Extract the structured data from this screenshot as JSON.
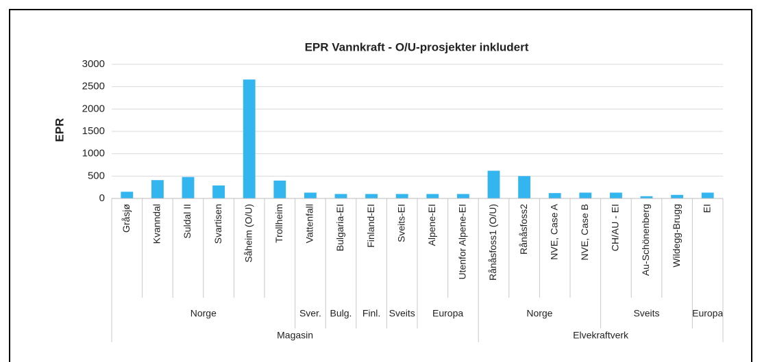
{
  "chart_data": {
    "type": "bar",
    "title": "EPR Vannkraft - O/U-prosjekter inkludert",
    "y_label": "EPR",
    "categories": [
      "Gråsjø",
      "Kvanndal",
      "Suldal II",
      "Svartisen",
      "Såheim (O/U)",
      "Trollheim",
      "Vattenfall",
      "Bulgaria-EI",
      "Finland-EI",
      "Sveits-EI",
      "Alpene-EI",
      "Utenfor Alpene-EI",
      "Rånåsfoss1 (O/U)",
      "Rånåsfoss2",
      "NVE, Case A",
      "NVE, Case B",
      "CH/AU - EI",
      "Au-Schönenberg",
      "Wildegg-Brugg",
      "EI"
    ],
    "values": [
      150,
      410,
      480,
      290,
      2660,
      400,
      130,
      100,
      100,
      100,
      100,
      100,
      620,
      500,
      120,
      130,
      130,
      50,
      80,
      130
    ],
    "color": "#33b5f0",
    "groups": [
      {
        "label": "Norge",
        "span": 6
      },
      {
        "label": "Sver.",
        "span": 1
      },
      {
        "label": "Bulg.",
        "span": 1
      },
      {
        "label": "Finl.",
        "span": 1
      },
      {
        "label": "Sveits",
        "span": 1
      },
      {
        "label": "Europa",
        "span": 2
      },
      {
        "label": "Norge",
        "span": 4
      },
      {
        "label": "Sveits",
        "span": 3
      },
      {
        "label": "Europa",
        "span": 1
      }
    ],
    "supergroups": [
      {
        "label": "Magasin",
        "span": 12
      },
      {
        "label": "Elvekraftverk",
        "span": 8
      }
    ],
    "ylim": [
      0,
      3000
    ],
    "yticks": [
      0,
      500,
      1000,
      1500,
      2000,
      2500,
      3000
    ],
    "grid": true
  }
}
